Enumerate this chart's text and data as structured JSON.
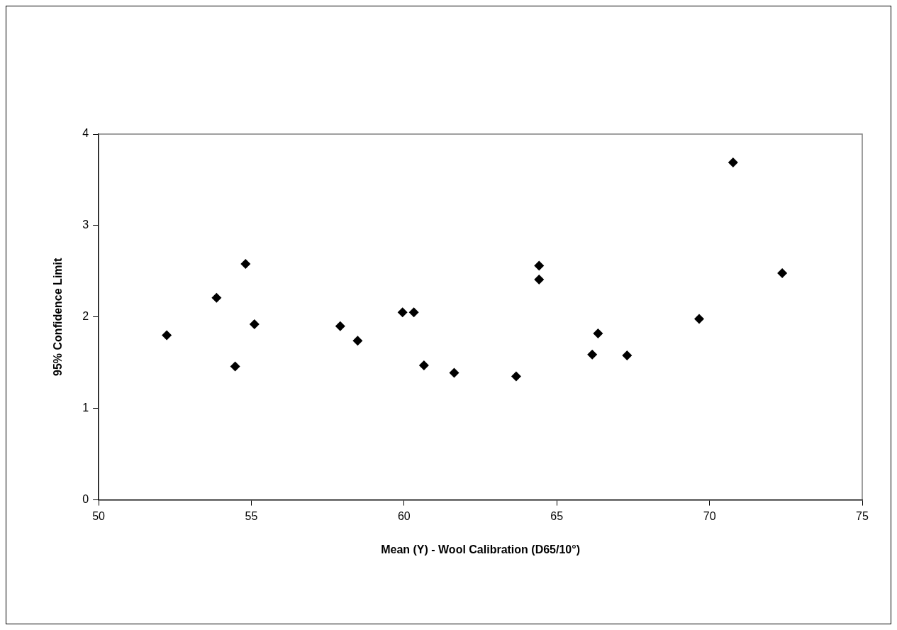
{
  "chart_data": {
    "type": "scatter",
    "xlabel": "Mean (Y) - Wool Calibration (D65/10°)",
    "ylabel": "95% Confidence Limit",
    "x": [
      52.23,
      53.86,
      54.47,
      54.81,
      55.1,
      57.91,
      58.48,
      59.95,
      60.32,
      60.65,
      61.64,
      63.67,
      64.42,
      64.42,
      66.16,
      66.35,
      67.3,
      69.66,
      70.77,
      72.38
    ],
    "series": [
      {
        "color": "#000000",
        "values": [
          1.8,
          2.21,
          1.46,
          2.58,
          1.92,
          1.9,
          1.74,
          2.05,
          2.05,
          1.47,
          1.39,
          1.35,
          2.56,
          2.41,
          1.59,
          1.82,
          1.58,
          1.98,
          3.69,
          2.48
        ]
      }
    ],
    "xlim": [
      50,
      75
    ],
    "xticks": [
      50,
      55,
      60,
      65,
      70,
      75
    ],
    "ylim": [
      0,
      4
    ],
    "yticks": [
      0,
      1,
      2,
      3,
      4
    ],
    "grid": false,
    "legend": false,
    "marker": "diamond"
  }
}
